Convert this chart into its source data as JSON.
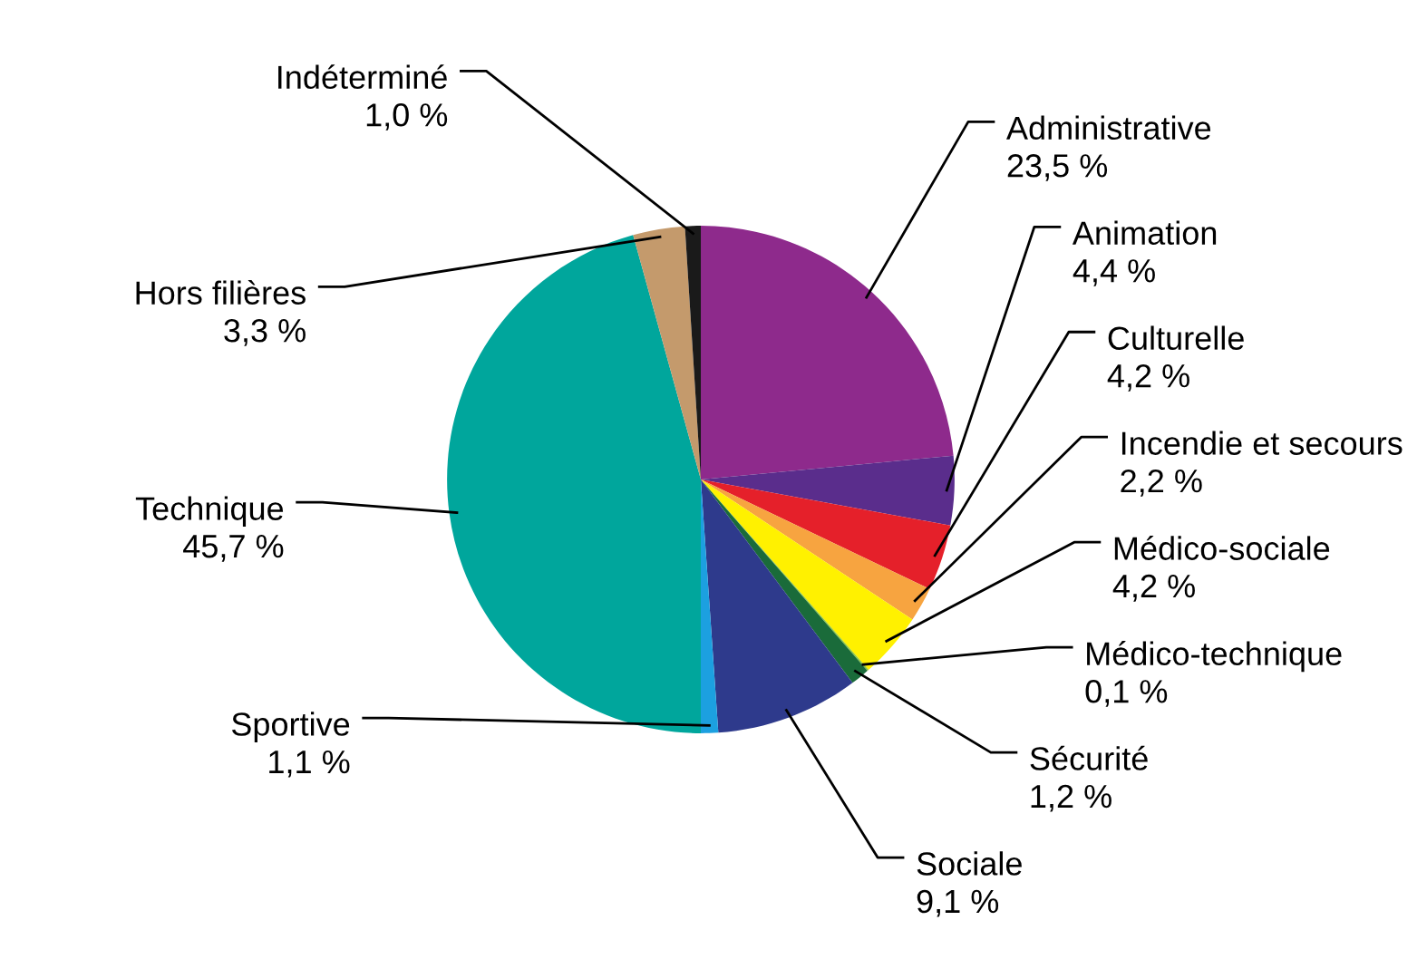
{
  "chart_data": {
    "type": "pie",
    "categories": [
      "Administrative",
      "Animation",
      "Culturelle",
      "Incendie et secours",
      "Médico-sociale",
      "Médico-technique",
      "Sécurité",
      "Sociale",
      "Sportive",
      "Technique",
      "Hors filières",
      "Indéterminé"
    ],
    "values": [
      23.5,
      4.4,
      4.2,
      2.2,
      4.2,
      0.1,
      1.2,
      9.1,
      1.1,
      45.7,
      3.3,
      1.0
    ],
    "value_labels": [
      "23,5 %",
      "4,4 %",
      "4,2 %",
      "2,2 %",
      "4,2 %",
      "0,1 %",
      "1,2 %",
      "9,1 %",
      "1,1 %",
      "45,7 %",
      "3,3 %",
      "1,0 %"
    ],
    "colors": [
      "#8e2a8c",
      "#5a2d8c",
      "#e5202a",
      "#f7a440",
      "#fff100",
      "#8dc63f",
      "#1a6b3a",
      "#2e3a8c",
      "#1ca0e0",
      "#00a69c",
      "#c49a6c",
      "#1a1a1a"
    ]
  }
}
